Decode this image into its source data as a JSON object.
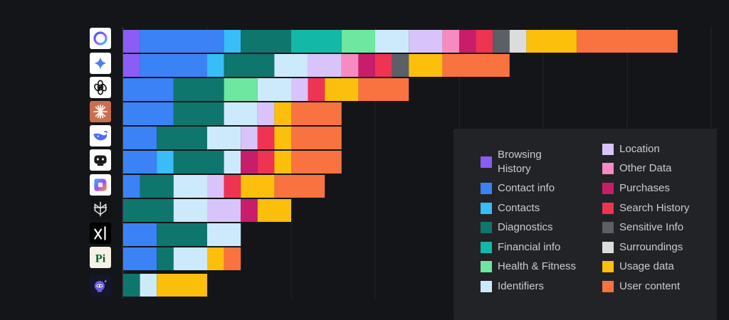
{
  "chart_data": {
    "type": "bar",
    "orientation": "horizontal",
    "stacked": true,
    "title": "",
    "xlabel": "",
    "ylabel": "",
    "grid": true,
    "legend_position": "bottom-right",
    "categories": [
      "Meta AI",
      "Gemini",
      "ChatGPT",
      "Claude",
      "DeepSeek",
      "Poe",
      "Copilot",
      "Perplexity",
      "Grok",
      "Pi",
      "Jasper"
    ],
    "data_types": [
      {
        "name": "Browsing History",
        "color": "#8b5cf6"
      },
      {
        "name": "Contact info",
        "color": "#3b82f6"
      },
      {
        "name": "Contacts",
        "color": "#38bdf8"
      },
      {
        "name": "Diagnostics",
        "color": "#0f766e"
      },
      {
        "name": "Financial info",
        "color": "#14b8a6"
      },
      {
        "name": "Health & Fitness",
        "color": "#6ee7a0"
      },
      {
        "name": "Identifiers",
        "color": "#cdeafc"
      },
      {
        "name": "Location",
        "color": "#d8c4fb"
      },
      {
        "name": "Other Data",
        "color": "#f58bc0"
      },
      {
        "name": "Purchases",
        "color": "#c81d6b"
      },
      {
        "name": "Search History",
        "color": "#ef3353"
      },
      {
        "name": "Sensitive Info",
        "color": "#5b5f66"
      },
      {
        "name": "Surroundings",
        "color": "#dcdcdc"
      },
      {
        "name": "Usage data",
        "color": "#fbbf0c"
      },
      {
        "name": "User content",
        "color": "#f97340"
      }
    ],
    "bars": [
      {
        "app": "Meta AI",
        "segments": [
          [
            "Browsing History",
            1
          ],
          [
            "Contact info",
            5
          ],
          [
            "Contacts",
            1
          ],
          [
            "Diagnostics",
            3
          ],
          [
            "Financial info",
            3
          ],
          [
            "Health & Fitness",
            2
          ],
          [
            "Identifiers",
            2
          ],
          [
            "Location",
            2
          ],
          [
            "Other Data",
            1
          ],
          [
            "Purchases",
            1
          ],
          [
            "Search History",
            1
          ],
          [
            "Sensitive Info",
            1
          ],
          [
            "Surroundings",
            1
          ],
          [
            "Usage data",
            3
          ],
          [
            "User content",
            6
          ]
        ]
      },
      {
        "app": "Gemini",
        "segments": [
          [
            "Browsing History",
            1
          ],
          [
            "Contact info",
            4
          ],
          [
            "Contacts",
            1
          ],
          [
            "Diagnostics",
            3
          ],
          [
            "Identifiers",
            2
          ],
          [
            "Location",
            2
          ],
          [
            "Other Data",
            1
          ],
          [
            "Purchases",
            1
          ],
          [
            "Search History",
            1
          ],
          [
            "Sensitive Info",
            1
          ],
          [
            "Usage data",
            2
          ],
          [
            "User content",
            4
          ]
        ]
      },
      {
        "app": "ChatGPT",
        "segments": [
          [
            "Contact info",
            3
          ],
          [
            "Diagnostics",
            3
          ],
          [
            "Health & Fitness",
            2
          ],
          [
            "Identifiers",
            2
          ],
          [
            "Location",
            1
          ],
          [
            "Search History",
            1
          ],
          [
            "Usage data",
            2
          ],
          [
            "User content",
            3
          ]
        ]
      },
      {
        "app": "Claude",
        "segments": [
          [
            "Contact info",
            3
          ],
          [
            "Diagnostics",
            3
          ],
          [
            "Identifiers",
            2
          ],
          [
            "Location",
            1
          ],
          [
            "Usage data",
            1
          ],
          [
            "User content",
            3
          ]
        ]
      },
      {
        "app": "DeepSeek",
        "segments": [
          [
            "Contact info",
            2
          ],
          [
            "Diagnostics",
            3
          ],
          [
            "Identifiers",
            2
          ],
          [
            "Location",
            1
          ],
          [
            "Search History",
            1
          ],
          [
            "Usage data",
            1
          ],
          [
            "User content",
            3
          ]
        ]
      },
      {
        "app": "Poe",
        "segments": [
          [
            "Contact info",
            2
          ],
          [
            "Contacts",
            1
          ],
          [
            "Diagnostics",
            3
          ],
          [
            "Identifiers",
            1
          ],
          [
            "Purchases",
            1
          ],
          [
            "Search History",
            1
          ],
          [
            "Usage data",
            1
          ],
          [
            "User content",
            3
          ]
        ]
      },
      {
        "app": "Copilot",
        "segments": [
          [
            "Contact info",
            1
          ],
          [
            "Diagnostics",
            2
          ],
          [
            "Identifiers",
            2
          ],
          [
            "Location",
            1
          ],
          [
            "Search History",
            1
          ],
          [
            "Usage data",
            2
          ],
          [
            "User content",
            3
          ]
        ]
      },
      {
        "app": "Perplexity",
        "segments": [
          [
            "Diagnostics",
            3
          ],
          [
            "Identifiers",
            2
          ],
          [
            "Location",
            2
          ],
          [
            "Purchases",
            1
          ],
          [
            "Usage data",
            2
          ]
        ]
      },
      {
        "app": "Grok",
        "segments": [
          [
            "Contact info",
            2
          ],
          [
            "Diagnostics",
            3
          ],
          [
            "Identifiers",
            2
          ]
        ]
      },
      {
        "app": "Pi",
        "segments": [
          [
            "Contact info",
            2
          ],
          [
            "Diagnostics",
            1
          ],
          [
            "Identifiers",
            2
          ],
          [
            "Usage data",
            1
          ],
          [
            "User content",
            1
          ]
        ]
      },
      {
        "app": "Jasper",
        "segments": [
          [
            "Diagnostics",
            1
          ],
          [
            "Identifiers",
            1
          ],
          [
            "Usage data",
            3
          ]
        ]
      }
    ]
  },
  "legend": {
    "col1": [
      {
        "label": "Browsing History",
        "color": "#8b5cf6"
      },
      {
        "label": "Contact info",
        "color": "#3b82f6"
      },
      {
        "label": "Contacts",
        "color": "#38bdf8"
      },
      {
        "label": "Diagnostics",
        "color": "#0f766e"
      },
      {
        "label": "Financial info",
        "color": "#14b8a6"
      },
      {
        "label": "Health & Fitness",
        "color": "#6ee7a0"
      },
      {
        "label": "Identifiers",
        "color": "#cdeafc"
      }
    ],
    "col2": [
      {
        "label": "Location",
        "color": "#d8c4fb"
      },
      {
        "label": "Other Data",
        "color": "#f58bc0"
      },
      {
        "label": "Purchases",
        "color": "#c81d6b"
      },
      {
        "label": "Search History",
        "color": "#ef3353"
      },
      {
        "label": "Sensitive Info",
        "color": "#5b5f66"
      },
      {
        "label": "Surroundings",
        "color": "#dcdcdc"
      },
      {
        "label": "Usage data",
        "color": "#fbbf0c"
      },
      {
        "label": "User content",
        "color": "#f97340"
      }
    ]
  },
  "icons": [
    "meta-ai-logo-icon",
    "gemini-logo-icon",
    "chatgpt-logo-icon",
    "claude-logo-icon",
    "deepseek-logo-icon",
    "poe-logo-icon",
    "copilot-logo-icon",
    "perplexity-logo-icon",
    "grok-logo-icon",
    "pi-logo-icon",
    "jasper-logo-icon"
  ]
}
